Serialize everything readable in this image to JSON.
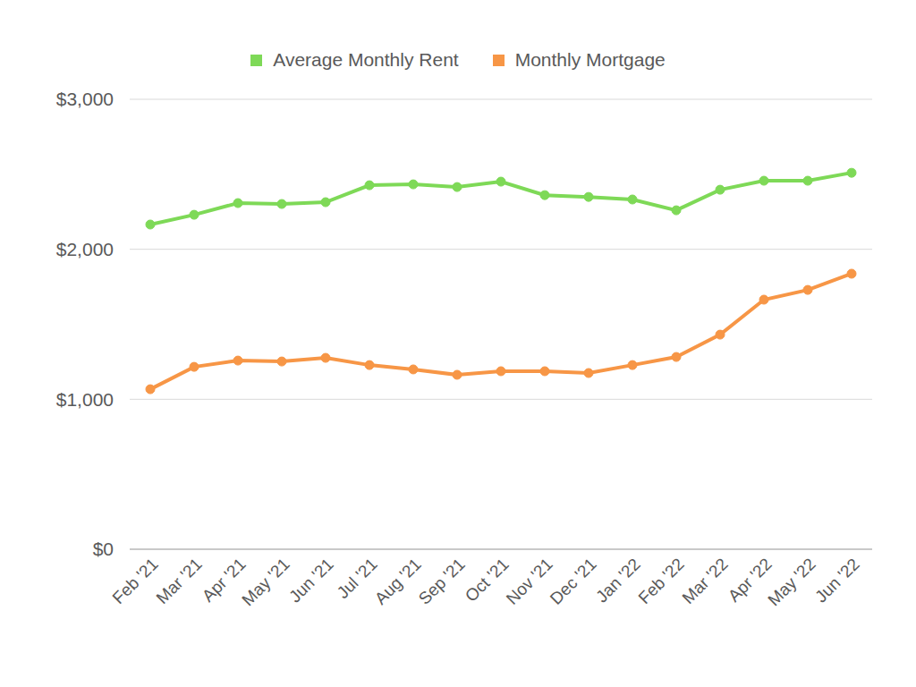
{
  "chart_data": {
    "type": "line",
    "categories": [
      "Feb '21",
      "Mar '21",
      "Apr '21",
      "May '21",
      "Jun '21",
      "Jul '21",
      "Aug '21",
      "Sep '21",
      "Oct '21",
      "Nov '21",
      "Dec '21",
      "Jan '22",
      "Feb '22",
      "Mar '22",
      "Apr '22",
      "May '22",
      "Jun '22"
    ],
    "series": [
      {
        "name": "Average Monthly Rent",
        "color": "#7ed957",
        "marker": "circle",
        "values": [
          2165,
          2230,
          2308,
          2302,
          2314,
          2427,
          2433,
          2415,
          2451,
          2361,
          2349,
          2332,
          2260,
          2397,
          2457,
          2457,
          2510
        ]
      },
      {
        "name": "Monthly Mortgage",
        "color": "#f79646",
        "marker": "circle",
        "values": [
          1067,
          1216,
          1258,
          1252,
          1276,
          1228,
          1199,
          1163,
          1187,
          1187,
          1175,
          1228,
          1282,
          1431,
          1664,
          1729,
          1837
        ]
      }
    ],
    "ylim": [
      0,
      3000
    ],
    "yticks": [
      {
        "value": 0,
        "label": "$0"
      },
      {
        "value": 1000,
        "label": "$1,000"
      },
      {
        "value": 2000,
        "label": "$2,000"
      },
      {
        "value": 3000,
        "label": "$3,000"
      }
    ],
    "grid": true,
    "legend": "top"
  }
}
